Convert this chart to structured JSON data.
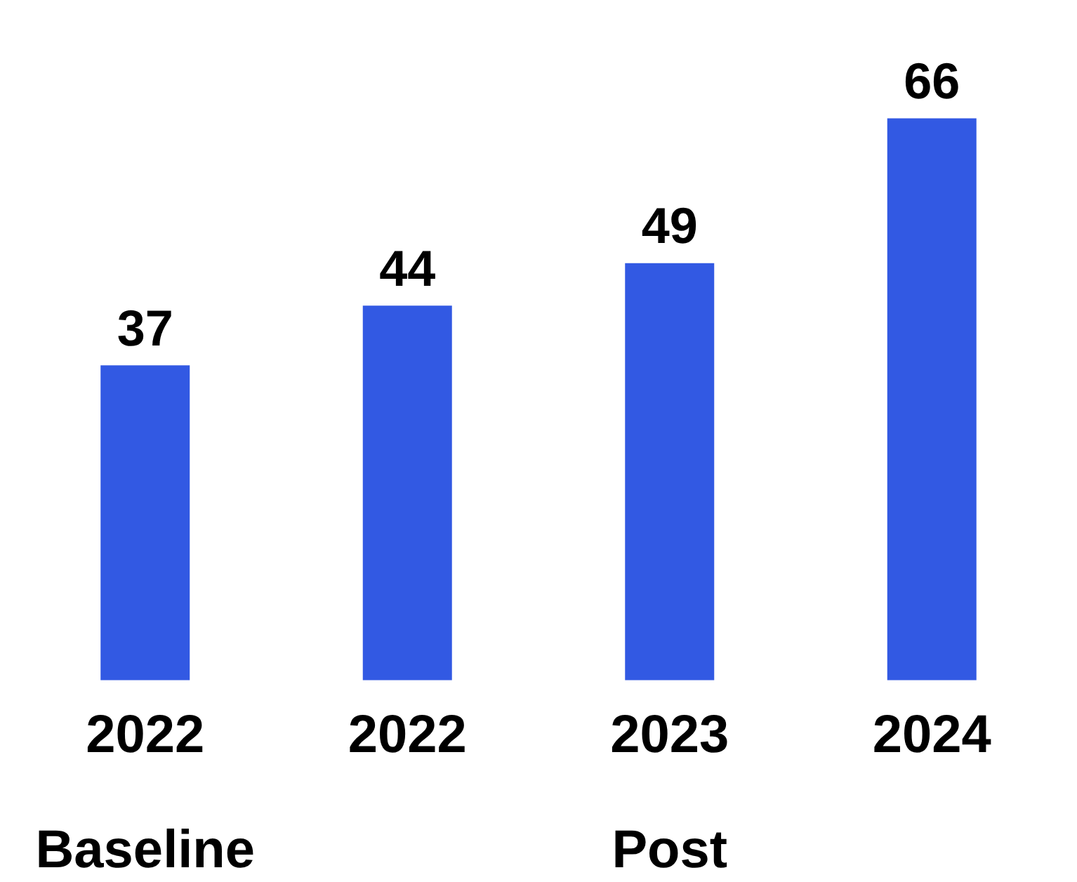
{
  "chart_data": {
    "type": "bar",
    "categories": [
      "2022",
      "2022",
      "2023",
      "2024"
    ],
    "values": [
      37,
      44,
      49,
      66
    ],
    "color": "#3259e3",
    "data_labels": true,
    "grid": false,
    "legend": false,
    "tick_labels": "x",
    "annotations": [
      "Baseline",
      "Post"
    ]
  }
}
